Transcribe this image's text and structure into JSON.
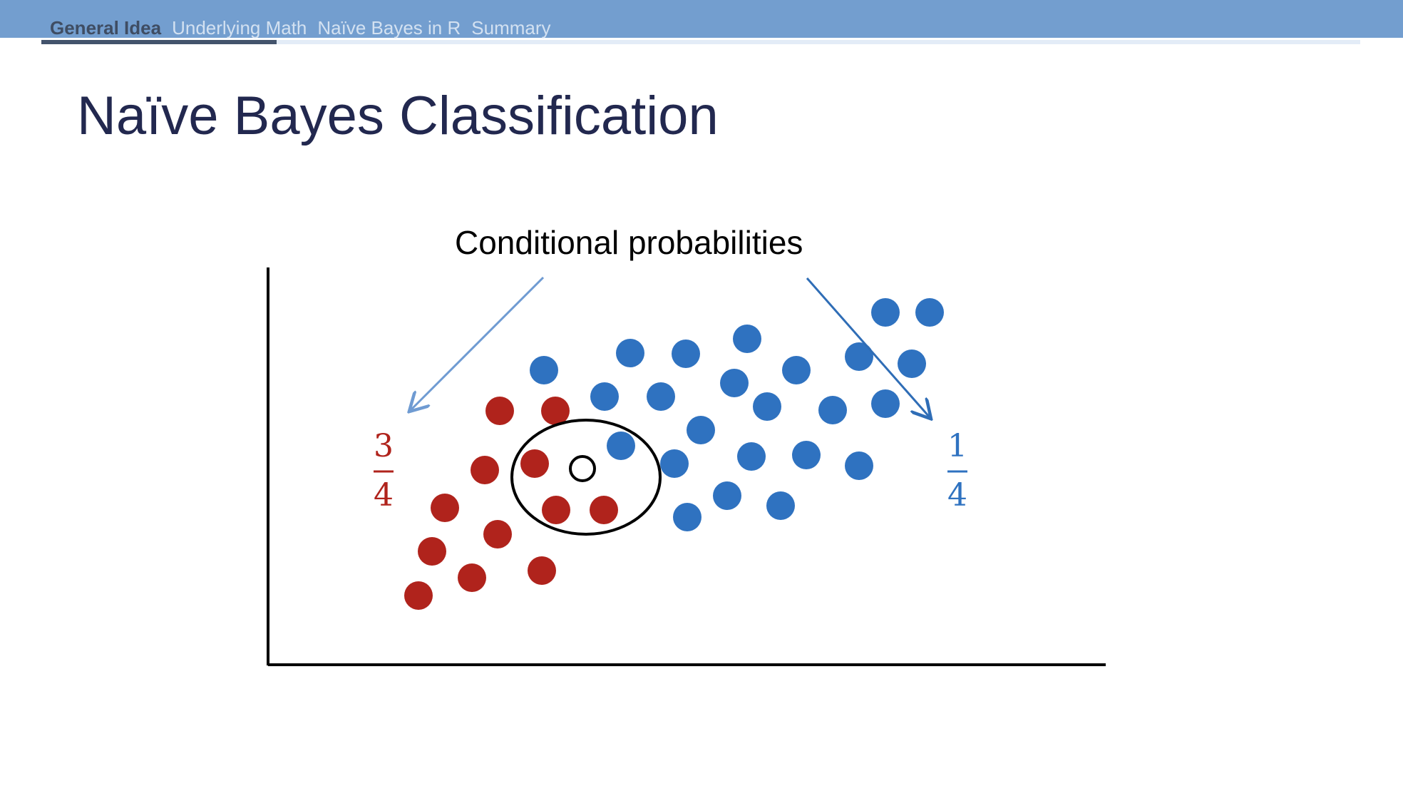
{
  "nav": {
    "items": [
      {
        "label": "General Idea",
        "active": true
      },
      {
        "label": "Underlying Math",
        "active": false
      },
      {
        "label": "Naïve Bayes in R",
        "active": false
      },
      {
        "label": "Summary",
        "active": false
      }
    ]
  },
  "slide": {
    "title": "Naïve Bayes Classification"
  },
  "diagram": {
    "annotation": "Conditional probabilities",
    "red_fraction": {
      "numerator": "3",
      "denominator": "4"
    },
    "blue_fraction": {
      "numerator": "1",
      "denominator": "4"
    },
    "colors": {
      "red_class": "#b0231c",
      "blue_class": "#2f72c0",
      "left_arrow": "#6f9bd2",
      "right_arrow": "#2f6db6",
      "nav_bar": "#739ecf",
      "title": "#22284f"
    }
  }
}
